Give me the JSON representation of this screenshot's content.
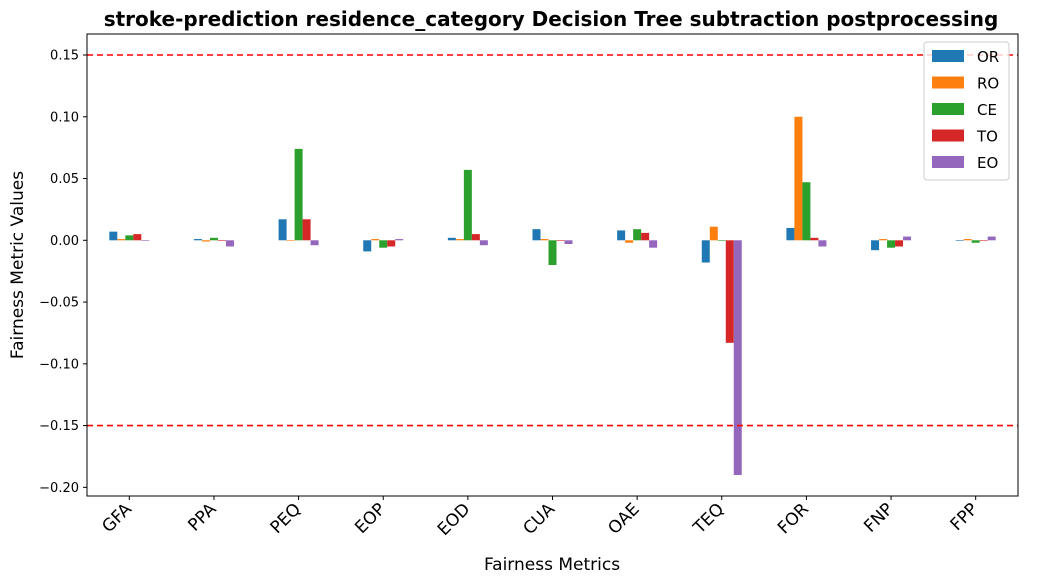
{
  "chart_data": {
    "type": "bar",
    "title": "stroke-prediction residence_category Decision Tree subtraction postprocessing",
    "xlabel": "Fairness Metrics",
    "ylabel": "Fairness Metric Values",
    "categories": [
      "GFA",
      "PPA",
      "PEQ",
      "EOP",
      "EOD",
      "CUA",
      "OAE",
      "TEQ",
      "FOR",
      "FNP",
      "FPP"
    ],
    "ylim": [
      -0.207,
      0.167
    ],
    "yticks": [
      -0.2,
      -0.15,
      -0.1,
      -0.05,
      0.0,
      0.05,
      0.1,
      0.15
    ],
    "ytick_labels": [
      "−0.20",
      "−0.15",
      "−0.10",
      "−0.05",
      "0.00",
      "0.05",
      "0.10",
      "0.15"
    ],
    "threshold_lines": [
      0.15,
      -0.15
    ],
    "threshold_color": "#ff0000",
    "legend_position": "top-right",
    "grid": false,
    "series": [
      {
        "name": "OR",
        "color": "#1f77b4",
        "values": [
          0.007,
          0.001,
          0.017,
          -0.009,
          0.002,
          0.009,
          0.008,
          -0.018,
          0.01,
          -0.008,
          0.0
        ]
      },
      {
        "name": "RO",
        "color": "#ff7f0e",
        "values": [
          0.001,
          -0.001,
          0.0,
          0.001,
          0.001,
          0.001,
          -0.002,
          0.011,
          0.1,
          0.001,
          0.001
        ]
      },
      {
        "name": "CE",
        "color": "#2ca02c",
        "values": [
          0.004,
          0.002,
          0.074,
          -0.006,
          0.057,
          -0.02,
          0.009,
          0.0,
          0.047,
          -0.006,
          -0.002
        ]
      },
      {
        "name": "TO",
        "color": "#d62728",
        "values": [
          0.005,
          0.0,
          0.017,
          -0.005,
          0.005,
          0.0,
          0.006,
          -0.083,
          0.002,
          -0.005,
          0.0
        ]
      },
      {
        "name": "EO",
        "color": "#9467bd",
        "values": [
          0.0,
          -0.005,
          -0.004,
          0.001,
          -0.004,
          -0.003,
          -0.006,
          -0.19,
          -0.005,
          0.003,
          0.003
        ]
      }
    ]
  }
}
